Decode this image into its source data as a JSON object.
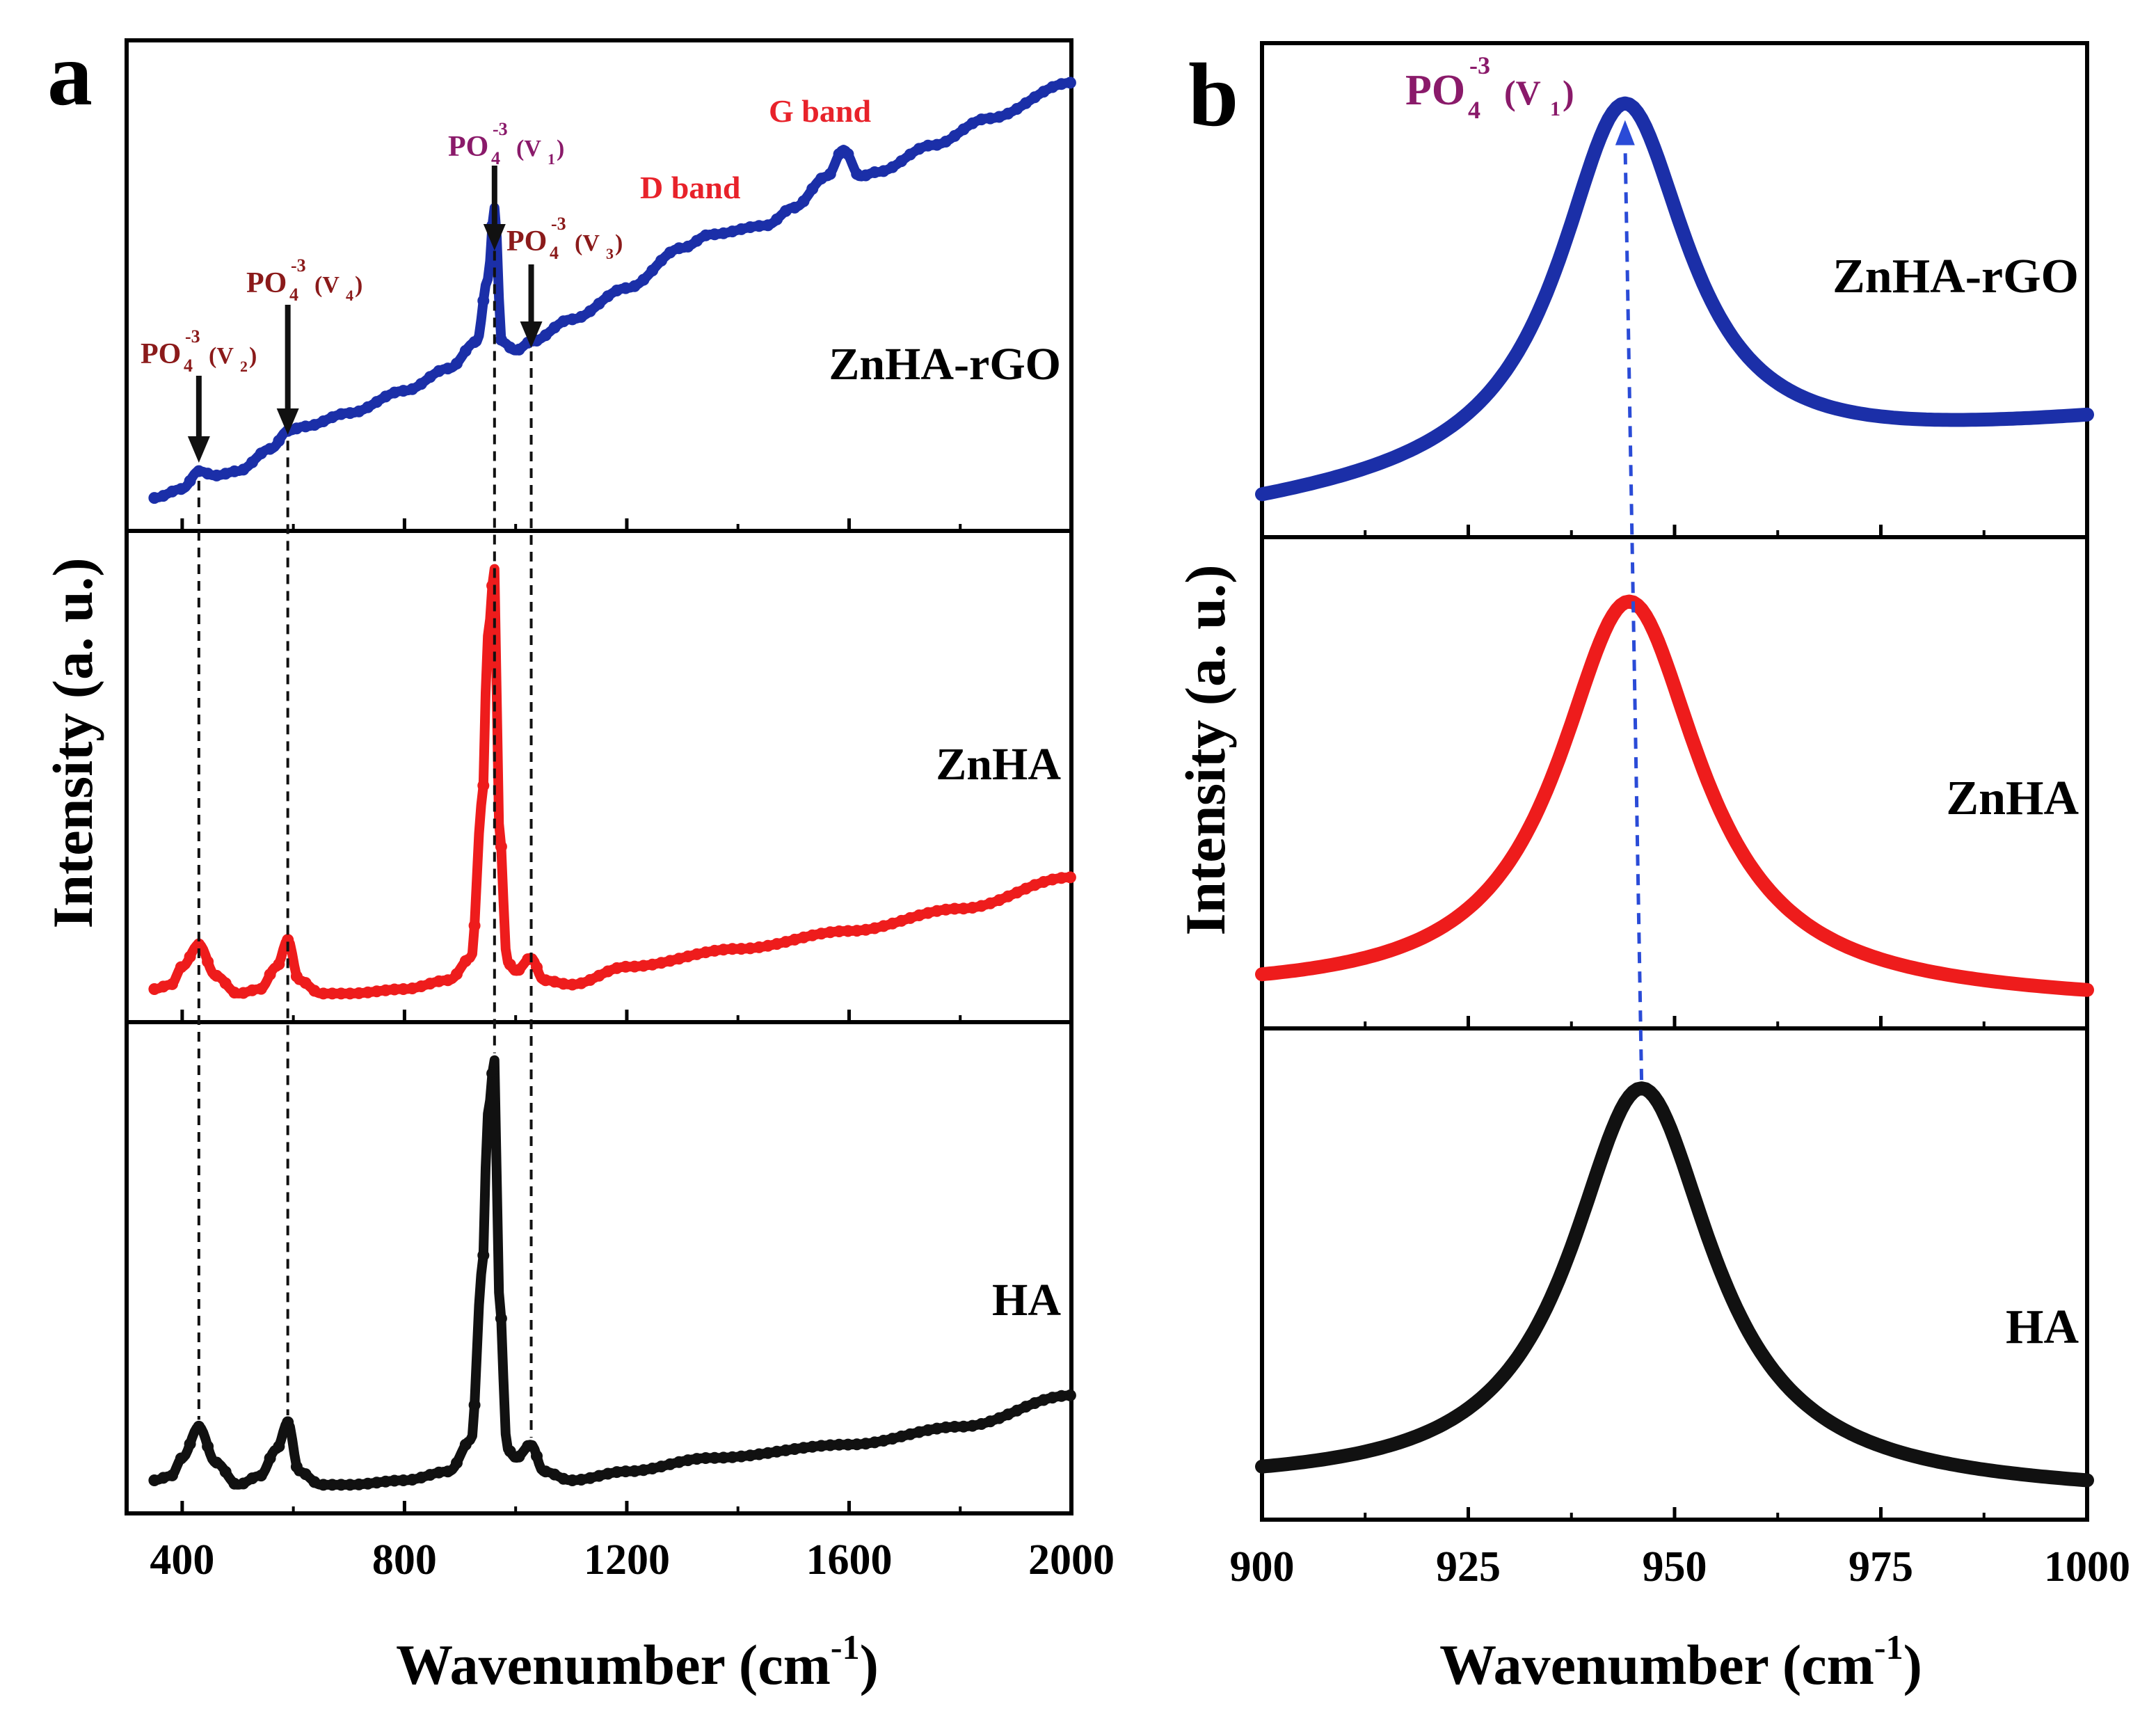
{
  "colors": {
    "zn_ha_rgo": "#1b2fa8",
    "zn_ha": "#ee1c1c",
    "ha": "#111111",
    "band": "#e8222a",
    "po4": "#8b1a1a",
    "po4_v1_b": "#8a1a6a",
    "dashed_b": "#2a4bd7"
  },
  "panels": [
    {
      "id": "a",
      "letter": "a",
      "xlabel": "Wavenumber (cm",
      "xlabel_sup": "-1",
      "xlabel_close": ")",
      "ylabel": "Intensity (a. u.)",
      "xlim": [
        300,
        2000
      ],
      "xticks": [
        400,
        800,
        1200,
        1600,
        2000
      ],
      "xtick_labels": [
        "400",
        "800",
        "1200",
        "1600",
        "2000"
      ],
      "subplots": [
        {
          "name": "ZnHA-rGO",
          "label": "ZnHA-rGO",
          "color": "#1b2fa8"
        },
        {
          "name": "ZnHA",
          "label": "ZnHA",
          "color": "#ee1c1c"
        },
        {
          "name": "HA",
          "label": "HA",
          "color": "#111111"
        }
      ],
      "band_labels": {
        "d_band": "D band",
        "g_band": "G band"
      },
      "po4_labels": {
        "v2": {
          "main": "PO",
          "sub": "4",
          "sup": "-3",
          "mode": "(V",
          "mode_sub": "2",
          "close": ")",
          "x": 430
        },
        "v4": {
          "main": "PO",
          "sub": "4",
          "sup": "-3",
          "mode": "(V",
          "mode_sub": "4",
          "close": ")",
          "x": 590
        },
        "v1": {
          "main": "PO",
          "sub": "4",
          "sup": "-3",
          "mode": "(V",
          "mode_sub": "1",
          "close": ")",
          "x": 962
        },
        "v3": {
          "main": "PO",
          "sub": "4",
          "sup": "-3",
          "mode": "(V",
          "mode_sub": "3",
          "close": ")",
          "x": 1028
        }
      },
      "markers_x": [
        430,
        590,
        962,
        1028
      ]
    },
    {
      "id": "b",
      "letter": "b",
      "xlabel": "Wavenumber (cm",
      "xlabel_sup": "-1",
      "xlabel_close": ")",
      "ylabel": "Intensity (a. u.)",
      "xlim": [
        900,
        1000
      ],
      "xticks": [
        900,
        925,
        950,
        975,
        1000
      ],
      "xtick_labels": [
        "900",
        "925",
        "950",
        "975",
        "1000"
      ],
      "subplots": [
        {
          "name": "ZnHA-rGO",
          "label": "ZnHA-rGO",
          "color": "#1b2fa8"
        },
        {
          "name": "ZnHA",
          "label": "ZnHA",
          "color": "#ee1c1c"
        },
        {
          "name": "HA",
          "label": "HA",
          "color": "#111111"
        }
      ],
      "po4_label": {
        "main": "PO",
        "sub": "4",
        "sup": "-3",
        "mode": "(V",
        "mode_sub": "1",
        "close": ")"
      },
      "peak_positions": {
        "ZnHA-rGO": 944,
        "ZnHA": 944.5,
        "HA": 946
      }
    }
  ],
  "chart_data": [
    {
      "type": "line",
      "title": "",
      "xlabel": "Wavenumber (cm-1)",
      "ylabel": "Intensity (a. u.)",
      "xlim": [
        300,
        2000
      ],
      "grid": false,
      "series": [
        {
          "name": "ZnHA-rGO",
          "x": [
            350,
            400,
            430,
            460,
            500,
            560,
            590,
            620,
            700,
            800,
            880,
            930,
            950,
            962,
            975,
            1000,
            1028,
            1100,
            1200,
            1300,
            1350,
            1450,
            1500,
            1560,
            1590,
            1620,
            1650,
            1750,
            1850,
            2000
          ],
          "y": [
            0.03,
            0.05,
            0.09,
            0.08,
            0.09,
            0.14,
            0.18,
            0.19,
            0.22,
            0.27,
            0.32,
            0.38,
            0.52,
            0.68,
            0.38,
            0.36,
            0.38,
            0.43,
            0.5,
            0.59,
            0.62,
            0.64,
            0.68,
            0.75,
            0.81,
            0.75,
            0.76,
            0.82,
            0.88,
            0.96
          ]
        },
        {
          "name": "ZnHA",
          "x": [
            350,
            380,
            400,
            430,
            460,
            500,
            540,
            570,
            590,
            610,
            650,
            700,
            800,
            880,
            920,
            940,
            950,
            962,
            970,
            985,
            1000,
            1028,
            1050,
            1100,
            1200,
            1400,
            1600,
            1800,
            2000
          ],
          "y": [
            0.03,
            0.04,
            0.08,
            0.13,
            0.06,
            0.02,
            0.03,
            0.08,
            0.14,
            0.05,
            0.02,
            0.02,
            0.03,
            0.05,
            0.1,
            0.45,
            0.82,
            0.97,
            0.4,
            0.09,
            0.07,
            0.1,
            0.05,
            0.04,
            0.08,
            0.12,
            0.16,
            0.21,
            0.28
          ]
        },
        {
          "name": "HA",
          "x": [
            350,
            380,
            400,
            430,
            460,
            500,
            540,
            570,
            590,
            610,
            650,
            700,
            800,
            880,
            920,
            940,
            950,
            962,
            970,
            985,
            1000,
            1028,
            1050,
            1100,
            1200,
            1350,
            1600,
            1800,
            2000
          ],
          "y": [
            0.03,
            0.04,
            0.08,
            0.15,
            0.07,
            0.02,
            0.04,
            0.1,
            0.16,
            0.05,
            0.02,
            0.02,
            0.03,
            0.05,
            0.12,
            0.5,
            0.85,
            0.97,
            0.45,
            0.1,
            0.08,
            0.11,
            0.05,
            0.03,
            0.05,
            0.08,
            0.11,
            0.15,
            0.22
          ]
        }
      ],
      "annotations": [
        "ZnHA-rGO",
        "ZnHA",
        "HA",
        "D band",
        "G band",
        "PO4-3(V2)",
        "PO4-3(V4)",
        "PO4-3(V1)",
        "PO4-3(V3)"
      ]
    },
    {
      "type": "line",
      "title": "",
      "xlabel": "Wavenumber (cm-1)",
      "ylabel": "Intensity (a. u.)",
      "xlim": [
        900,
        1000
      ],
      "grid": false,
      "series": [
        {
          "name": "ZnHA-rGO",
          "center": 944,
          "hwhm": 9.5,
          "peak": 0.92,
          "baseline_left": 0.0,
          "baseline_right": 0.2,
          "points": 201
        },
        {
          "name": "ZnHA",
          "center": 944.5,
          "hwhm": 10.5,
          "peak": 0.91,
          "baseline_left": 0.02,
          "baseline_right": 0.0,
          "points": 201
        },
        {
          "name": "HA",
          "center": 946,
          "hwhm": 10.5,
          "peak": 0.92,
          "baseline_left": 0.02,
          "baseline_right": 0.0,
          "points": 201
        }
      ],
      "annotations": [
        "ZnHA-rGO",
        "ZnHA",
        "HA",
        "PO4-3(V1)"
      ]
    }
  ]
}
